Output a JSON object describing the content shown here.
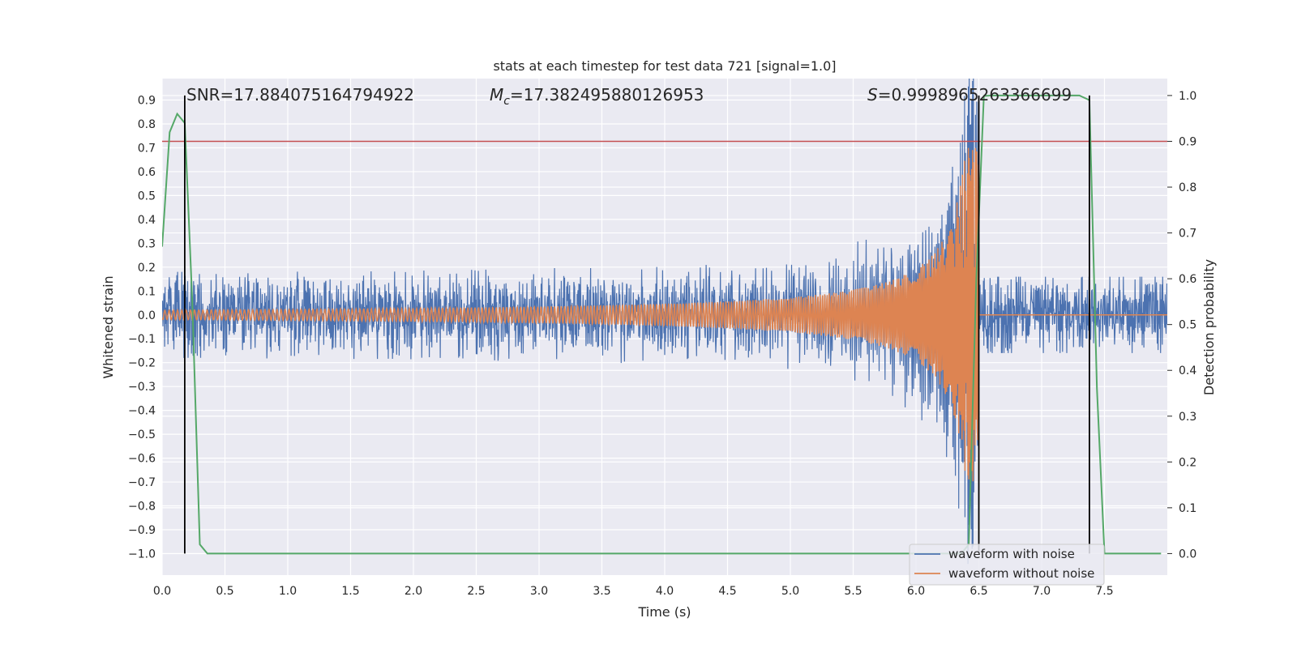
{
  "chart_data": {
    "type": "line",
    "title": "stats at each timestep for test data 721 [signal=1.0]",
    "xlabel": "Time (s)",
    "ylabel": "Whitened strain",
    "y2label": "Detection probability",
    "xlim": [
      0.0,
      8.0
    ],
    "ylim": [
      -1.09,
      0.99
    ],
    "y2lim": [
      -0.047,
      1.037
    ],
    "x_ticks": [
      "0.0",
      "0.5",
      "1.0",
      "1.5",
      "2.0",
      "2.5",
      "3.0",
      "3.5",
      "4.0",
      "4.5",
      "5.0",
      "5.5",
      "6.0",
      "6.5",
      "7.0",
      "7.5"
    ],
    "y_ticks": [
      "0.9",
      "0.8",
      "0.7",
      "0.6",
      "0.5",
      "0.4",
      "0.3",
      "0.2",
      "0.1",
      "0.0",
      "−0.1",
      "−0.2",
      "−0.3",
      "−0.4",
      "−0.5",
      "−0.6",
      "−0.7",
      "−0.8",
      "−0.9",
      "−1.0"
    ],
    "y2_ticks": [
      "1.0",
      "0.9",
      "0.8",
      "0.7",
      "0.6",
      "0.5",
      "0.4",
      "0.3",
      "0.2",
      "0.1",
      "0.0"
    ],
    "grid": true,
    "threshold": {
      "y2": 0.9,
      "color": "#c44e52"
    },
    "vlines": [
      0.18,
      6.5,
      7.38
    ],
    "annotations": {
      "snr": "SNR=17.884075164794922",
      "mc_symbol": "M",
      "mc_sub": "c",
      "mc_value": "=17.382495880126953",
      "s_symbol": "S",
      "s_value": "=0.9998965263366699"
    },
    "series": [
      {
        "name": "waveform with noise",
        "color": "#4c72b0",
        "noise_amplitude": 0.13,
        "peak_amplitude": 0.75,
        "merger_time": 6.5
      },
      {
        "name": "waveform without noise",
        "color": "#dd8452",
        "start_amplitude": 0.02,
        "peak_amplitude": 0.7,
        "merger_time": 6.5
      },
      {
        "name": "",
        "color": "#55a868",
        "axis": "y2",
        "x": [
          0.0,
          0.06,
          0.12,
          0.18,
          0.24,
          0.3,
          0.36,
          0.42,
          6.36,
          6.42,
          6.48,
          6.54,
          6.6,
          7.3,
          7.38,
          7.44,
          7.5,
          7.56,
          7.95
        ],
        "values": [
          0.67,
          0.92,
          0.96,
          0.94,
          0.55,
          0.02,
          0.0,
          0.0,
          0.0,
          0.02,
          0.6,
          0.999,
          1.0,
          1.0,
          0.99,
          0.36,
          0.0,
          0.0,
          0.0
        ]
      }
    ],
    "legend": {
      "location": "lower-right",
      "entries": [
        {
          "label": "waveform with noise",
          "color": "#4c72b0"
        },
        {
          "label": "waveform without noise",
          "color": "#dd8452"
        }
      ]
    }
  }
}
